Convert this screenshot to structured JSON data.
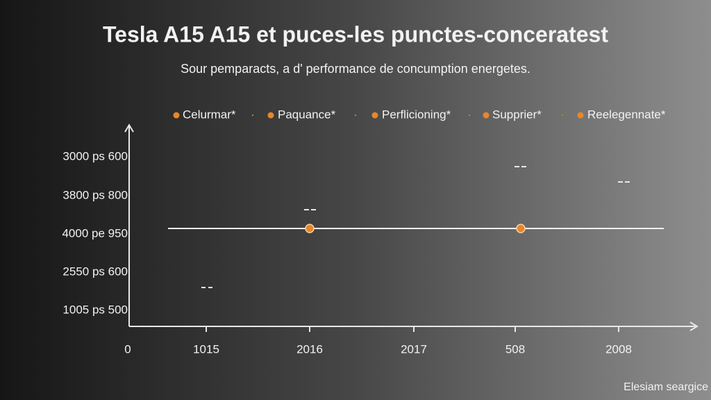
{
  "title": "Tesla A15 A15 et puces-les punctes-conceratest",
  "subtitle": "Sour pemparacts, a d' performance de concumption energetes.",
  "legend": [
    "Celurmar*",
    "Paquance*",
    "Perflicioning*",
    "Supprier*",
    "Reelegennate*"
  ],
  "y_axis_labels": [
    "3000 ps 600",
    "3800 ps 800",
    "4000 pe 950",
    "2550 ps 600",
    "1005 ps 500"
  ],
  "x_axis_labels": [
    "0",
    "1015",
    "2016",
    "2017",
    "508",
    "2008"
  ],
  "footer": "Elesiam seargice"
}
